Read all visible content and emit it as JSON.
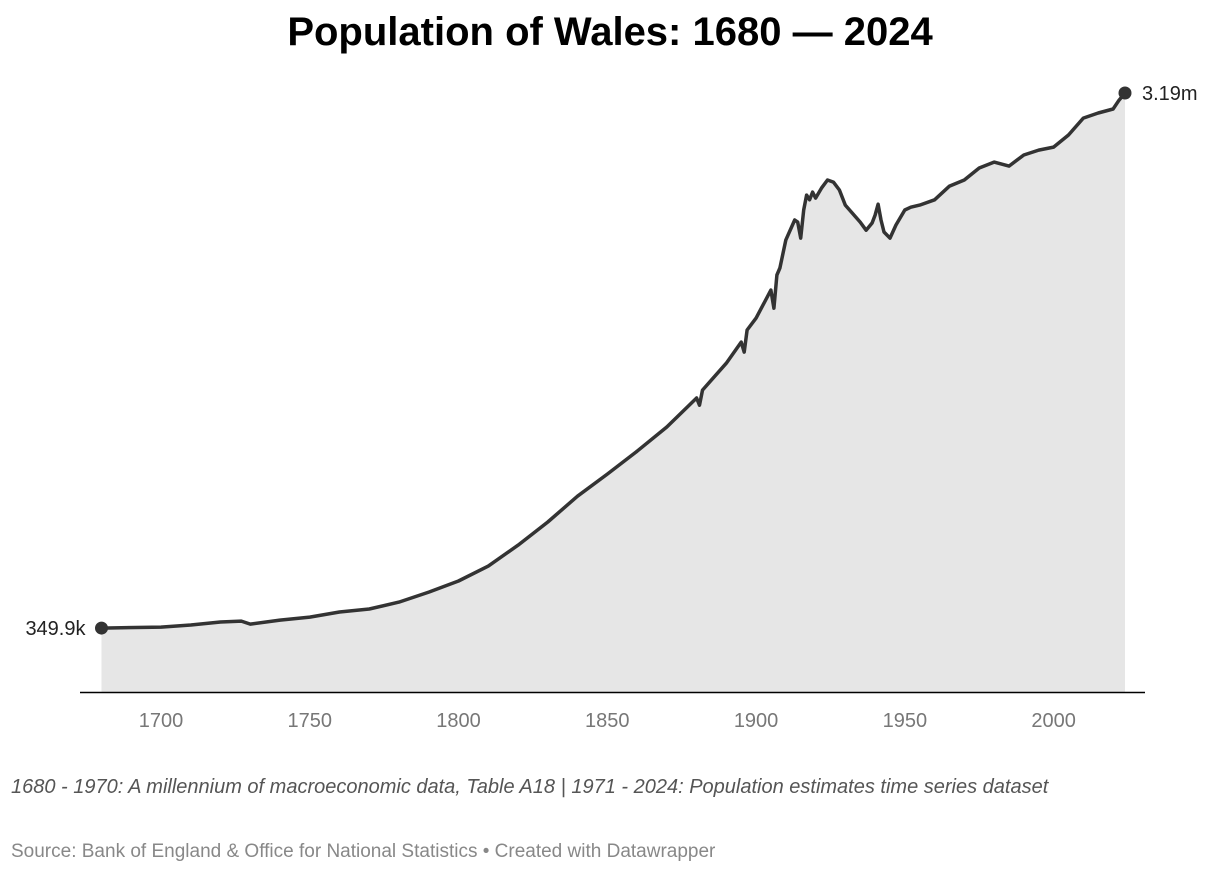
{
  "chart_data": {
    "type": "area",
    "title": "Population of Wales: 1680 — 2024",
    "xlabel": "",
    "ylabel": "",
    "xlim": [
      1680,
      2024
    ],
    "ylim": [
      0,
      3.19
    ],
    "y_unit": "millions",
    "x_ticks": [
      "1700",
      "1750",
      "1800",
      "1850",
      "1900",
      "1950",
      "2000"
    ],
    "grid": false,
    "line_color": "#333333",
    "fill_color": "#e6e6e6",
    "annotations": [
      {
        "x": 1680,
        "y": 0.3499,
        "label": "349.9k"
      },
      {
        "x": 2024,
        "y": 3.19,
        "label": "3.19m"
      }
    ],
    "x": [
      1680,
      1700,
      1710,
      1720,
      1727,
      1730,
      1740,
      1750,
      1760,
      1770,
      1780,
      1790,
      1800,
      1810,
      1820,
      1830,
      1840,
      1850,
      1860,
      1870,
      1880,
      1881,
      1882,
      1890,
      1895,
      1896,
      1897,
      1900,
      1905,
      1906,
      1907,
      1908,
      1910,
      1913,
      1914,
      1915,
      1916,
      1917,
      1918,
      1919,
      1920,
      1922,
      1924,
      1926,
      1928,
      1930,
      1935,
      1937,
      1939,
      1940,
      1941,
      1942,
      1943,
      1945,
      1947,
      1950,
      1952,
      1955,
      1960,
      1965,
      1970,
      1975,
      1980,
      1985,
      1990,
      1995,
      2000,
      2005,
      2010,
      2015,
      2020,
      2022,
      2024
    ],
    "values": [
      0.35,
      0.355,
      0.366,
      0.382,
      0.387,
      0.371,
      0.392,
      0.408,
      0.435,
      0.451,
      0.488,
      0.541,
      0.6,
      0.679,
      0.79,
      0.913,
      1.05,
      1.167,
      1.289,
      1.417,
      1.571,
      1.533,
      1.613,
      1.756,
      1.868,
      1.815,
      1.932,
      1.995,
      2.144,
      2.048,
      2.224,
      2.261,
      2.409,
      2.516,
      2.505,
      2.42,
      2.569,
      2.648,
      2.623,
      2.664,
      2.632,
      2.685,
      2.728,
      2.717,
      2.675,
      2.595,
      2.505,
      2.462,
      2.5,
      2.542,
      2.6,
      2.516,
      2.452,
      2.42,
      2.489,
      2.569,
      2.584,
      2.595,
      2.623,
      2.696,
      2.728,
      2.792,
      2.823,
      2.802,
      2.861,
      2.887,
      2.903,
      2.967,
      3.057,
      3.084,
      3.105,
      3.152,
      3.19
    ]
  },
  "notes": "1680 - 1970: A millennium of macroeconomic data, Table A18 | 1971 - 2024: Population estimates time series dataset",
  "source": "Source: Bank of England & Office for National Statistics • Created with Datawrapper"
}
